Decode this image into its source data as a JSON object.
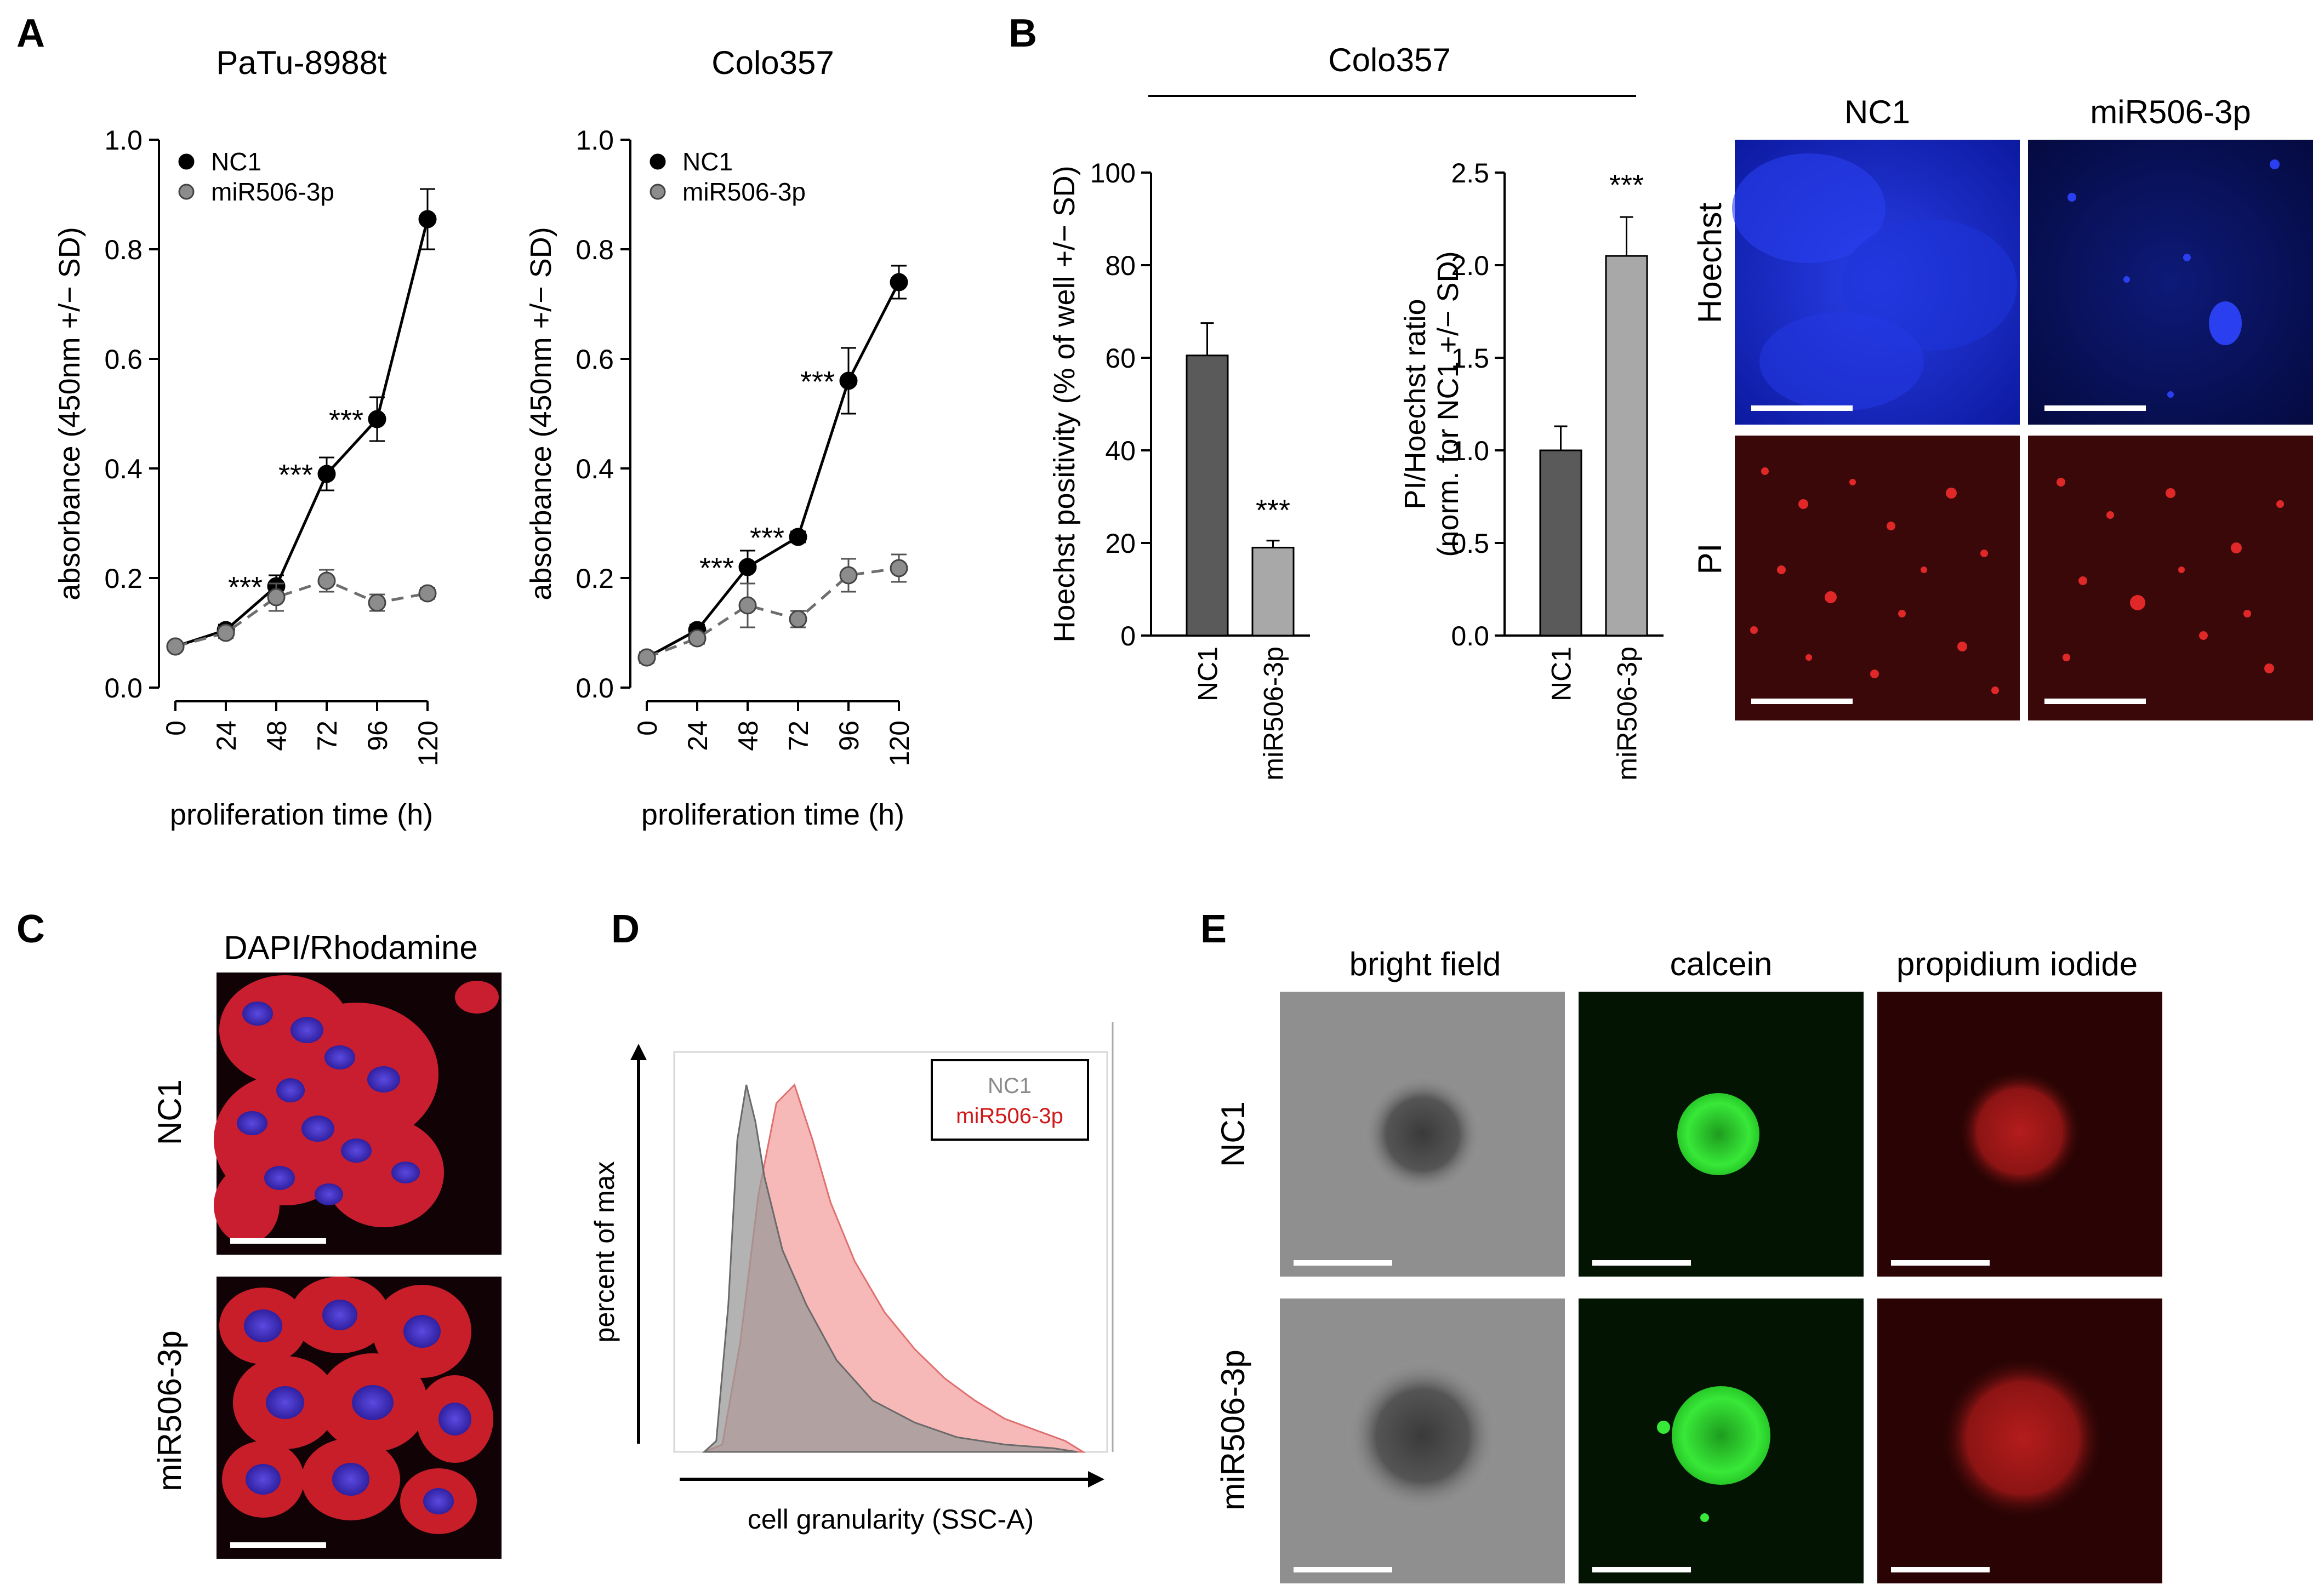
{
  "panel_labels": {
    "A": "A",
    "B": "B",
    "C": "C",
    "D": "D",
    "E": "E"
  },
  "colors": {
    "nc1": "#000000",
    "mir": "#8c8c8c",
    "bar_dark": "#5a5a5a",
    "bar_light": "#a8a8a8",
    "hoechst_blue": "#1a2fd8",
    "pi_red": "#d02020",
    "calcein_green": "#28d428",
    "hist_grey": "#9a9a9a",
    "hist_pink": "#f4a0a0"
  },
  "chart_data": [
    {
      "id": "A1",
      "type": "line",
      "title": "PaTu-8988t",
      "xlabel": "proliferation time (h)",
      "ylabel": "absorbance (450nm +/− SD)",
      "x": [
        0,
        24,
        48,
        72,
        96,
        120
      ],
      "ylim": [
        0.0,
        1.0
      ],
      "yticks": [
        "0.0",
        "0.2",
        "0.4",
        "0.6",
        "0.8",
        "1.0"
      ],
      "legend": "top-left",
      "series": [
        {
          "name": "NC1",
          "values": [
            0.075,
            0.105,
            0.185,
            0.39,
            0.49,
            0.855
          ],
          "err": [
            0.005,
            0.01,
            0.02,
            0.03,
            0.04,
            0.055
          ]
        },
        {
          "name": "miR506-3p",
          "values": [
            0.075,
            0.1,
            0.165,
            0.195,
            0.155,
            0.172
          ],
          "err": [
            0.005,
            0.01,
            0.025,
            0.02,
            0.015,
            0.01
          ]
        }
      ],
      "annotations": [
        {
          "x": 48,
          "text": "***"
        },
        {
          "x": 72,
          "text": "***"
        },
        {
          "x": 96,
          "text": "***"
        }
      ]
    },
    {
      "id": "A2",
      "type": "line",
      "title": "Colo357",
      "xlabel": "proliferation time (h)",
      "ylabel": "absorbance (450nm +/− SD)",
      "x": [
        0,
        24,
        48,
        72,
        96,
        120
      ],
      "ylim": [
        0.0,
        1.0
      ],
      "yticks": [
        "0.0",
        "0.2",
        "0.4",
        "0.6",
        "0.8",
        "1.0"
      ],
      "legend": "top-left",
      "series": [
        {
          "name": "NC1",
          "values": [
            0.055,
            0.105,
            0.22,
            0.275,
            0.56,
            0.74
          ],
          "err": [
            0.01,
            0.01,
            0.03,
            0.01,
            0.06,
            0.03
          ]
        },
        {
          "name": "miR506-3p",
          "values": [
            0.055,
            0.09,
            0.15,
            0.125,
            0.205,
            0.218
          ],
          "err": [
            0.01,
            0.01,
            0.04,
            0.015,
            0.03,
            0.025
          ]
        }
      ],
      "annotations": [
        {
          "x": 48,
          "text": "***"
        },
        {
          "x": 72,
          "text": "***"
        },
        {
          "x": 96,
          "text": "***"
        }
      ]
    },
    {
      "id": "B1",
      "type": "bar",
      "categories": [
        "NC1",
        "miR506-3p"
      ],
      "values": [
        60.5,
        19
      ],
      "err": [
        7,
        1.5
      ],
      "ylabel": "Hoechst positivity (% of well +/− SD)",
      "ylim": [
        0,
        100
      ],
      "yticks": [
        "0",
        "20",
        "40",
        "60",
        "80",
        "100"
      ],
      "annotations": [
        {
          "category": "miR506-3p",
          "text": "***"
        }
      ]
    },
    {
      "id": "B2",
      "type": "bar",
      "categories": [
        "NC1",
        "miR506-3p"
      ],
      "values": [
        1.0,
        2.05
      ],
      "err": [
        0.13,
        0.21
      ],
      "ylabel_lines": [
        "PI/Hoechst ratio",
        "(norm. for NC1 +/− SD)"
      ],
      "ylim": [
        0,
        2.5
      ],
      "yticks": [
        "0.0",
        "0.5",
        "1.0",
        "1.5",
        "2.0",
        "2.5"
      ],
      "annotations": [
        {
          "category": "miR506-3p",
          "text": "***"
        }
      ]
    },
    {
      "id": "D",
      "type": "area",
      "xlabel": "cell granularity (SSC-A)",
      "ylabel": "percent of max",
      "legend_position": "top-right",
      "series": [
        {
          "name": "NC1",
          "x": [
            1.0,
            1.2,
            1.4,
            1.55,
            1.7,
            1.85,
            2.0,
            2.3,
            2.7,
            3.2,
            3.8,
            4.5,
            5.2,
            6.0,
            6.8,
            7.2
          ],
          "values": [
            0,
            3,
            40,
            85,
            100,
            90,
            75,
            55,
            40,
            25,
            14,
            8,
            4,
            2,
            1,
            0
          ]
        },
        {
          "name": "miR506-3p",
          "x": [
            1.0,
            1.3,
            1.6,
            1.9,
            2.2,
            2.5,
            2.8,
            3.1,
            3.5,
            4.0,
            4.5,
            5.0,
            5.5,
            6.0,
            6.5,
            7.0,
            7.3
          ],
          "values": [
            0,
            2,
            30,
            70,
            95,
            100,
            85,
            68,
            52,
            38,
            28,
            20,
            14,
            9,
            6,
            3,
            0
          ]
        }
      ]
    }
  ],
  "panel_b": {
    "group_header": "Colo357"
  },
  "panel_b_images": {
    "col_labels": [
      "NC1",
      "miR506-3p"
    ],
    "row_labels": [
      "Hoechst",
      "PI"
    ]
  },
  "panel_c": {
    "title": "DAPI/Rhodamine",
    "row_labels": [
      "NC1",
      "miR506-3p"
    ]
  },
  "panel_e": {
    "col_labels": [
      "bright field",
      "calcein",
      "propidium iodide"
    ],
    "row_labels": [
      "NC1",
      "miR506-3p"
    ]
  }
}
